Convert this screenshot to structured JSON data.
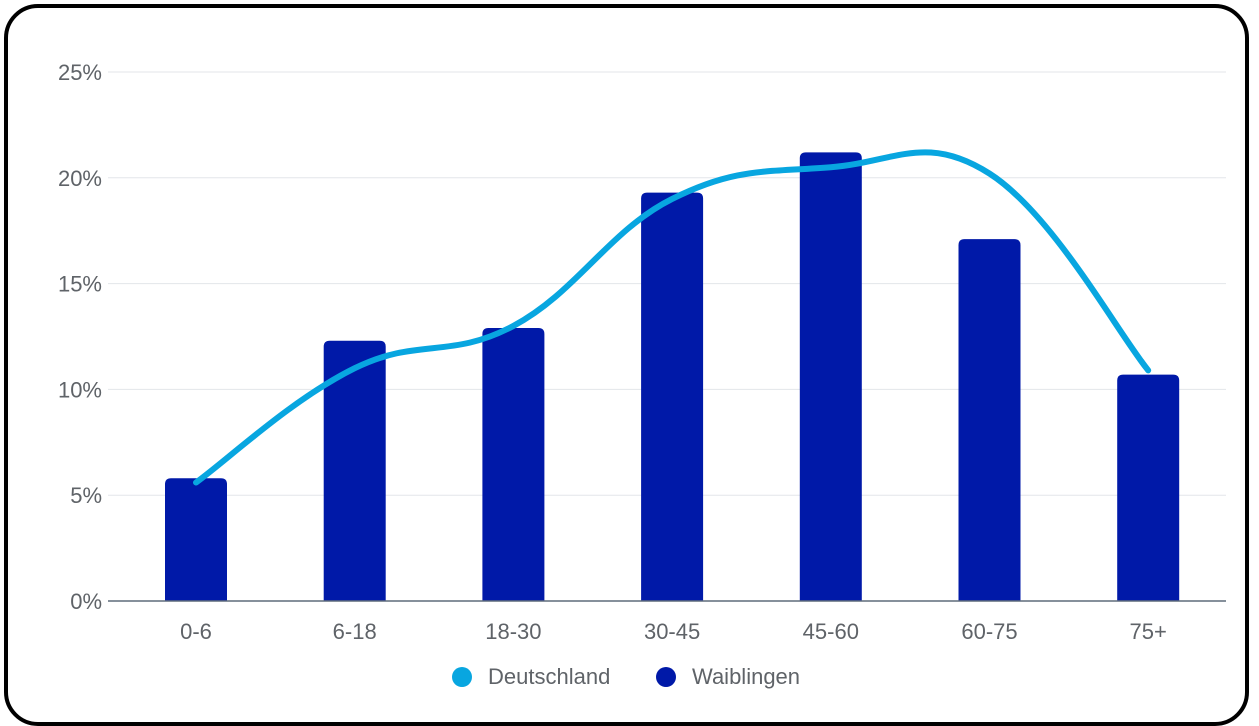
{
  "chart_data": {
    "type": "bar",
    "categories": [
      "0-6",
      "6-18",
      "18-30",
      "30-45",
      "45-60",
      "60-75",
      "75+"
    ],
    "series": [
      {
        "name": "Waiblingen",
        "type": "bar",
        "color": "#0019a8",
        "values": [
          5.8,
          12.3,
          12.9,
          19.3,
          21.2,
          17.1,
          10.7
        ]
      },
      {
        "name": "Deutschland",
        "type": "line",
        "color": "#08a6e0",
        "values": [
          5.6,
          11.0,
          13.0,
          19.0,
          20.5,
          20.2,
          10.9
        ]
      }
    ],
    "ylim": [
      0,
      25
    ],
    "yticks": [
      "0%",
      "5%",
      "10%",
      "15%",
      "20%",
      "25%"
    ],
    "ytick_values": [
      0,
      5,
      10,
      15,
      20,
      25
    ],
    "grid": true,
    "legend": "bottom",
    "legend_items": [
      {
        "label": "Deutschland",
        "color": "#08a6e0"
      },
      {
        "label": "Waiblingen",
        "color": "#0019a8"
      }
    ]
  }
}
